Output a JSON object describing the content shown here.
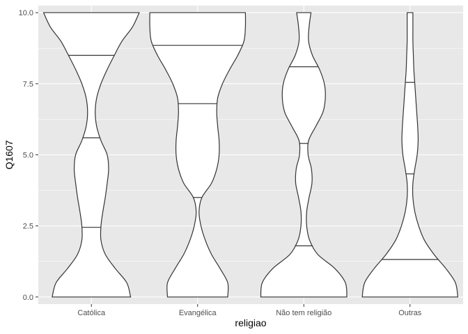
{
  "chart_data": {
    "type": "violin",
    "title": "",
    "xlabel": "religiao",
    "ylabel": "Q1607",
    "ylim": [
      -0.25,
      10.25
    ],
    "y_ticks": [
      "0.0",
      "2.5",
      "5.0",
      "7.5",
      "10.0"
    ],
    "y_tick_values": [
      0,
      2.5,
      5,
      7.5,
      10
    ],
    "grid": true,
    "background": "#e8e8e8",
    "gridline_color": "#ffffff",
    "violin_fill": "#ffffff",
    "violin_stroke": "#333333",
    "categories": [
      "Católica",
      "Evangélica",
      "Não tem religião",
      "Outras"
    ],
    "violins": [
      {
        "category": "Católica",
        "quantiles": [
          2.45,
          5.6,
          8.5
        ],
        "density_y": [
          0,
          0.5,
          1,
          1.5,
          2,
          2.5,
          3,
          3.5,
          4,
          4.5,
          5,
          5.5,
          6,
          6.5,
          7,
          7.5,
          8,
          8.5,
          9,
          9.5,
          10
        ],
        "density_width": [
          0.82,
          0.74,
          0.5,
          0.29,
          0.2,
          0.2,
          0.24,
          0.29,
          0.33,
          0.36,
          0.33,
          0.2,
          0.11,
          0.08,
          0.11,
          0.2,
          0.33,
          0.48,
          0.64,
          0.86,
          1.0
        ]
      },
      {
        "category": "Evangélica",
        "quantiles": [
          3.5,
          6.8,
          8.85
        ],
        "density_y": [
          0,
          0.5,
          1,
          1.5,
          2,
          2.5,
          3,
          3.5,
          4,
          4.5,
          5,
          5.5,
          6,
          6.5,
          7,
          7.5,
          8,
          8.5,
          9,
          9.5,
          10
        ],
        "density_width": [
          0.63,
          0.63,
          0.47,
          0.29,
          0.16,
          0.07,
          0.03,
          0.09,
          0.29,
          0.4,
          0.45,
          0.45,
          0.42,
          0.4,
          0.42,
          0.52,
          0.67,
          0.84,
          0.97,
          1.0,
          1.0
        ]
      },
      {
        "category": "Não tem religião",
        "quantiles": [
          1.8,
          5.4,
          8.1
        ],
        "density_y": [
          0,
          0.5,
          1,
          1.5,
          2,
          2.5,
          3,
          3.5,
          4,
          4.5,
          5,
          5.5,
          6,
          6.5,
          7,
          7.5,
          8,
          8.5,
          9,
          9.5,
          10
        ],
        "density_width": [
          0.9,
          0.87,
          0.65,
          0.29,
          0.12,
          0.06,
          0.06,
          0.11,
          0.17,
          0.16,
          0.09,
          0.1,
          0.25,
          0.4,
          0.45,
          0.43,
          0.33,
          0.18,
          0.1,
          0.11,
          0.15
        ]
      },
      {
        "category": "Outras",
        "quantiles": [
          1.32,
          4.33,
          7.55
        ],
        "density_y": [
          0,
          0.5,
          1,
          1.5,
          2,
          2.5,
          3,
          3.5,
          4,
          4.5,
          5,
          5.5,
          6,
          6.5,
          7,
          7.5,
          8,
          8.5,
          9,
          9.5,
          10
        ],
        "density_width": [
          1.0,
          0.95,
          0.75,
          0.5,
          0.3,
          0.18,
          0.1,
          0.06,
          0.06,
          0.1,
          0.15,
          0.17,
          0.16,
          0.14,
          0.12,
          0.1,
          0.08,
          0.07,
          0.06,
          0.06,
          0.06
        ]
      }
    ]
  }
}
